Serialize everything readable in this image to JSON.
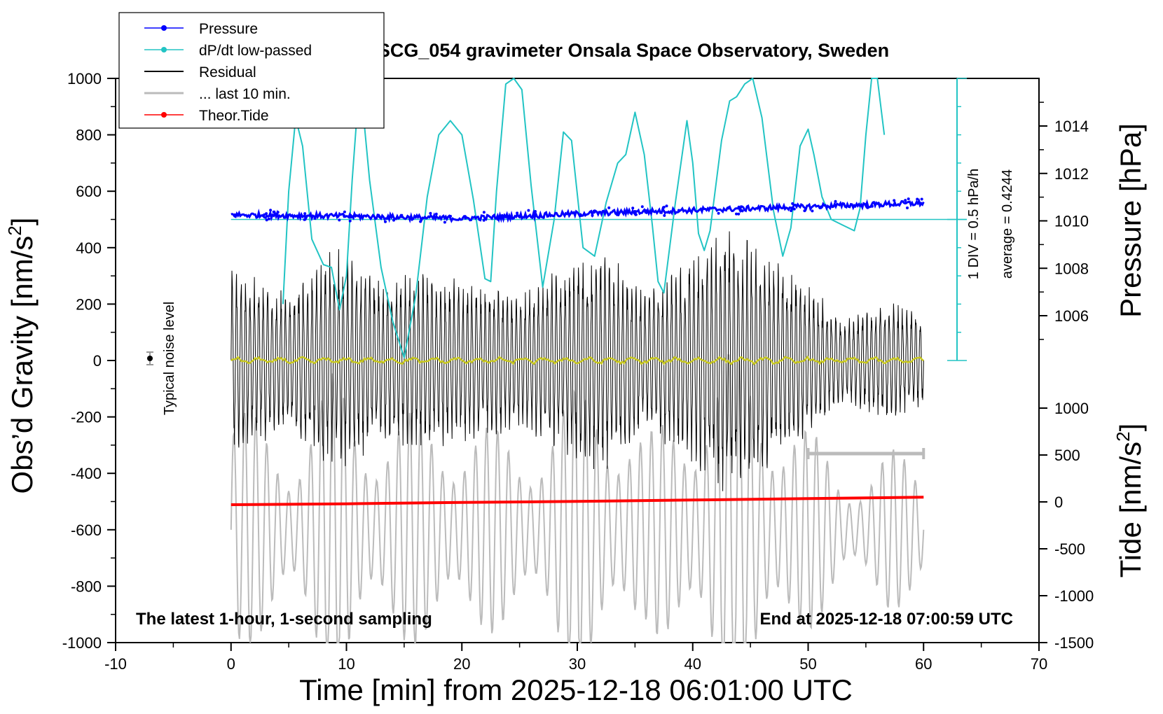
{
  "chart_data": {
    "type": "line",
    "title": "SCG_054 gravimeter Onsala Space Observatory, Sweden",
    "xlabel": "Time [min] from 2025-12-18 06:01:00 UTC",
    "ylabel": "Obs’d Gravity [nm/s²]",
    "ylabel_text": "Obs’d Gravity [nm/s",
    "ylabel_sup": "2",
    "ylabel_end": "]",
    "y2label": "Pressure [hPa]",
    "y3label_text": "Tide [nm/s",
    "y3label_sup": "2",
    "y3label_end": "]",
    "xlim": [
      -10,
      70
    ],
    "ylim": [
      -1000,
      1000
    ],
    "y2lim": [
      1004,
      1016
    ],
    "y3lim": [
      -1500,
      1000
    ],
    "x_ticks": [
      "-10",
      "0",
      "10",
      "20",
      "30",
      "40",
      "50",
      "60",
      "70"
    ],
    "y_ticks": [
      "1000",
      "800",
      "600",
      "400",
      "200",
      "0",
      "-200",
      "-400",
      "-600",
      "-800",
      "-1000"
    ],
    "y2_ticks": [
      "1014",
      "1012",
      "1010",
      "1008",
      "1006"
    ],
    "y3_ticks": [
      "1000",
      "500",
      "0",
      "-500",
      "-1000",
      "-1500"
    ],
    "legend": [
      "Pressure",
      "dP/dt low-passed",
      "Residual",
      "... last 10 min.",
      "Theor.Tide"
    ],
    "legend_position": "top-left",
    "bottom_left_note": "The latest 1-hour, 1-second sampling",
    "bottom_right_note": "End at 2025-12-18 07:00:59 UTC",
    "noise_label": "Typical noise level",
    "div_label": "1 DIV = 0.5 hPa/h",
    "avg_label": "average = 0.4244",
    "colors": {
      "pressure": "#0000ff",
      "dpdt": "#22c4c4",
      "residual": "#000000",
      "last10": "#bbbbbb",
      "tide": "#ff0000",
      "smooth": "#c8c820"
    },
    "series": [
      {
        "name": "Pressure",
        "axis": "pressure_hPa",
        "x": [
          0,
          10,
          20,
          30,
          40,
          50,
          60
        ],
        "values": [
          1010.25,
          1010.2,
          1010.1,
          1010.3,
          1010.45,
          1010.6,
          1010.75
        ]
      },
      {
        "name": "dP/dt low-passed",
        "axis": "gravity_nm_s2",
        "x": [
          4.5,
          5,
          5.6,
          6.2,
          7,
          8,
          8.7,
          9.4,
          10,
          10.5,
          11,
          11.4,
          12,
          13,
          14,
          15,
          16,
          17,
          18,
          19,
          20,
          21,
          22,
          22.5,
          23,
          23.8,
          24.5,
          25.2,
          26,
          27,
          28,
          28.8,
          29.5,
          30.5,
          31.5,
          32.5,
          33.5,
          34.2,
          35,
          35.8,
          36.5,
          37,
          37.5,
          38.5,
          39.5,
          40,
          40.5,
          41,
          41.5,
          42.5,
          43.2,
          43.8,
          44.5,
          45.2,
          46,
          47,
          47.8,
          48.5,
          49.3,
          50,
          50.5,
          51.2,
          52,
          53,
          54,
          54.5,
          55,
          55.5,
          56,
          56.6
        ],
        "values": [
          200,
          600,
          860,
          760,
          430,
          340,
          330,
          180,
          300,
          640,
          920,
          900,
          640,
          330,
          140,
          10,
          230,
          580,
          800,
          850,
          800,
          570,
          290,
          280,
          600,
          980,
          1010,
          960,
          620,
          260,
          500,
          810,
          780,
          400,
          370,
          560,
          700,
          730,
          880,
          730,
          480,
          280,
          240,
          560,
          850,
          700,
          450,
          390,
          460,
          780,
          920,
          935,
          980,
          1010,
          860,
          530,
          370,
          470,
          760,
          820,
          730,
          580,
          500,
          480,
          460,
          540,
          800,
          1010,
          1010,
          800
        ]
      },
      {
        "name": "Residual",
        "axis": "gravity_nm_s2",
        "x": [
          0,
          60
        ],
        "envelope": [
          [
            0,
            340
          ],
          [
            5,
            250
          ],
          [
            9,
            420
          ],
          [
            13,
            300
          ],
          [
            18,
            320
          ],
          [
            25,
            250
          ],
          [
            31.8,
            420
          ],
          [
            36,
            250
          ],
          [
            43.2,
            490
          ],
          [
            48.5,
            340
          ],
          [
            53,
            150
          ],
          [
            57,
            220
          ],
          [
            60,
            170
          ]
        ]
      },
      {
        "name": "... last 10 min.",
        "axis": "gravity_nm_s2",
        "x": [
          50,
          60
        ],
        "values": [
          -330,
          -330
        ]
      },
      {
        "name": "Theor.Tide",
        "axis": "tide_nm_s2",
        "x": [
          0,
          10,
          20,
          30,
          40,
          50,
          60
        ],
        "values": [
          -30,
          -20,
          -5,
          5,
          20,
          35,
          50
        ]
      }
    ]
  }
}
